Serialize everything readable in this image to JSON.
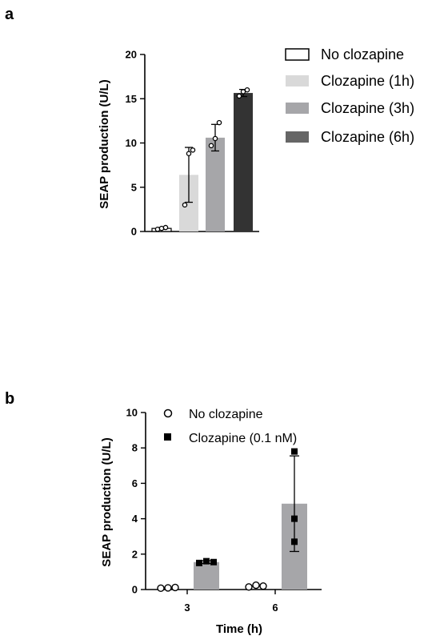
{
  "chart_data": [
    {
      "panel": "a",
      "type": "bar",
      "title": "",
      "xlabel": "",
      "ylabel": "SEAP production (U/L)",
      "ylim": [
        0,
        20
      ],
      "yticks": [
        0,
        5,
        10,
        15,
        20
      ],
      "legend_position": "right",
      "categories": [
        "No clozapine",
        "Clozapine (1h)",
        "Clozapine (3h)",
        "Clozapine (6h)"
      ],
      "colors": [
        "#ffffff",
        "#d9d9d9",
        "#a6a6a9",
        "#333333"
      ],
      "legend_colors": [
        "#ffffff",
        "#d9d9d9",
        "#a6a6a9",
        "#666666"
      ],
      "values": [
        0.35,
        6.4,
        10.6,
        15.65
      ],
      "errors": [
        0.1,
        3.1,
        1.5,
        0.4
      ],
      "points": [
        [
          0.25,
          0.35,
          0.45
        ],
        [
          3.0,
          8.8,
          9.2
        ],
        [
          9.7,
          10.5,
          12.3
        ],
        [
          15.3,
          15.8,
          16.0
        ]
      ]
    },
    {
      "panel": "b",
      "type": "bar",
      "title": "",
      "xlabel": "Time (h)",
      "ylabel": "SEAP production (U/L)",
      "ylim": [
        0,
        10
      ],
      "yticks": [
        0,
        2,
        4,
        6,
        8,
        10
      ],
      "legend_position": "top",
      "categories": [
        "3",
        "6"
      ],
      "series": [
        {
          "name": "No clozapine",
          "marker": "circle",
          "values": [
            0.05,
            0.15
          ],
          "points": [
            [
              0.03,
              0.05,
              0.07
            ],
            [
              0.1,
              0.2,
              0.15
            ]
          ]
        },
        {
          "name": "Clozapine (0.1 nM)",
          "marker": "square",
          "color": "#a6a6a9",
          "values": [
            1.55,
            4.85
          ],
          "errors": [
            0.08,
            2.7
          ],
          "points": [
            [
              1.5,
              1.6,
              1.55
            ],
            [
              7.8,
              4.0,
              2.7
            ]
          ]
        }
      ]
    }
  ]
}
